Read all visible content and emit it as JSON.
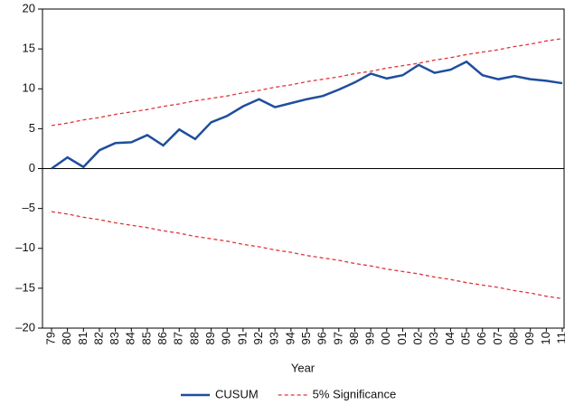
{
  "chart_data": {
    "type": "line",
    "x_label": "Year",
    "categories": [
      "79",
      "80",
      "81",
      "82",
      "83",
      "84",
      "85",
      "86",
      "87",
      "88",
      "89",
      "90",
      "91",
      "92",
      "93",
      "94",
      "95",
      "96",
      "97",
      "98",
      "99",
      "00",
      "01",
      "02",
      "03",
      "04",
      "05",
      "06",
      "07",
      "08",
      "09",
      "10",
      "11"
    ],
    "series": [
      {
        "name": "CUSUM",
        "color": "#1f4e9c",
        "style": "solid",
        "values": [
          0,
          1.4,
          0.2,
          2.3,
          3.2,
          3.3,
          4.2,
          2.9,
          4.9,
          3.7,
          5.8,
          6.6,
          7.8,
          8.7,
          7.7,
          8.2,
          8.7,
          9.1,
          9.9,
          10.8,
          11.9,
          11.3,
          11.7,
          13.0,
          12.0,
          12.4,
          13.4,
          11.7,
          11.2,
          11.6,
          11.2,
          11.0,
          10.7
        ]
      },
      {
        "name": "5% Significance",
        "color": "#e0343a",
        "style": "dashed",
        "values": [
          5.4,
          5.7,
          6.1,
          6.4,
          6.8,
          7.1,
          7.4,
          7.8,
          8.1,
          8.5,
          8.8,
          9.1,
          9.5,
          9.8,
          10.2,
          10.5,
          10.9,
          11.2,
          11.5,
          11.9,
          12.2,
          12.6,
          12.9,
          13.2,
          13.6,
          13.9,
          14.3,
          14.6,
          14.9,
          15.3,
          15.6,
          16.0,
          16.3
        ],
        "lower": [
          -5.4,
          -5.7,
          -6.1,
          -6.4,
          -6.8,
          -7.1,
          -7.4,
          -7.8,
          -8.1,
          -8.5,
          -8.8,
          -9.1,
          -9.5,
          -9.8,
          -10.2,
          -10.5,
          -10.9,
          -11.2,
          -11.5,
          -11.9,
          -12.2,
          -12.6,
          -12.9,
          -13.2,
          -13.6,
          -13.9,
          -14.3,
          -14.6,
          -14.9,
          -15.3,
          -15.6,
          -16.0,
          -16.3
        ]
      }
    ],
    "ylim": [
      -20,
      20
    ],
    "yticks": [
      {
        "value": -20,
        "label": "–20"
      },
      {
        "value": -15,
        "label": "–15"
      },
      {
        "value": -10,
        "label": "–10"
      },
      {
        "value": -5,
        "label": "–5"
      },
      0,
      5,
      10,
      15,
      20
    ],
    "zero_line": true,
    "legend": "bottom"
  }
}
